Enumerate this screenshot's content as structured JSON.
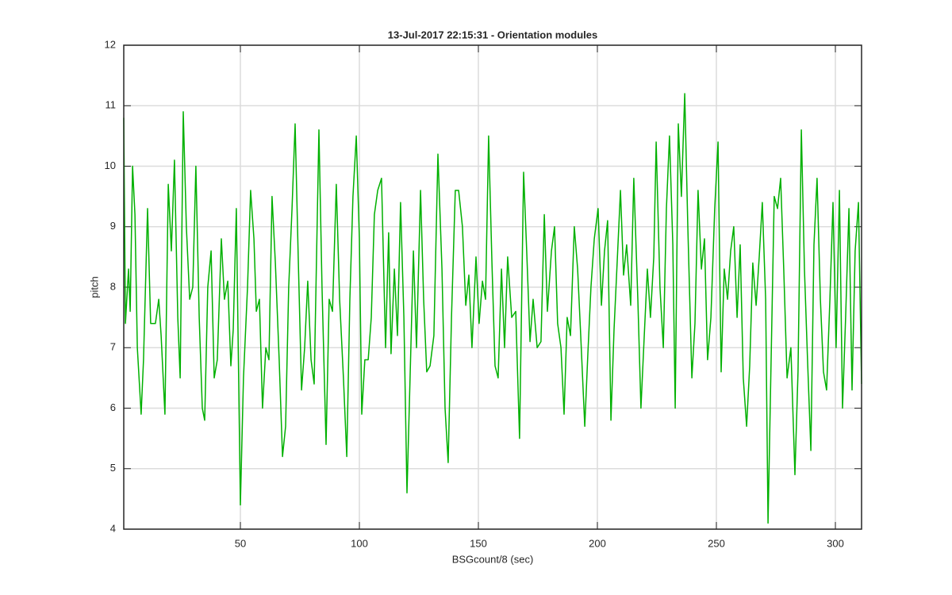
{
  "chart_data": {
    "type": "line",
    "title": "13-Jul-2017 22:15:31 - Orientation modules",
    "x_label": "BSGcount/8 (sec)",
    "y_label": "pitch",
    "xlim": [
      1,
      311
    ],
    "ylim": [
      4,
      12
    ],
    "xticks": [
      50,
      100,
      150,
      200,
      250,
      300
    ],
    "yticks": [
      4,
      5,
      6,
      7,
      8,
      9,
      10,
      11,
      12
    ],
    "grid": true,
    "x": [
      1,
      1.7,
      3,
      3.7,
      4.7,
      5.7,
      6.7,
      8.3,
      9.3,
      11,
      12.3,
      14.3,
      15.7,
      16.7,
      18.3,
      19.7,
      21,
      22.3,
      23.7,
      24.7,
      26,
      27.3,
      28.7,
      30,
      31.3,
      32.7,
      34,
      35,
      36.3,
      37.7,
      39,
      40.3,
      42,
      43.3,
      44.7,
      46,
      47,
      48.3,
      50,
      51.3,
      53,
      54.3,
      55.7,
      56.7,
      58,
      59.3,
      60.7,
      62,
      63.3,
      64.7,
      66.3,
      67.7,
      69,
      70.3,
      71.7,
      73,
      74.3,
      75.7,
      77,
      78.3,
      79.7,
      81,
      83,
      84.3,
      86,
      87.3,
      88.7,
      90.3,
      91.7,
      93.3,
      94.7,
      96,
      97.3,
      98.7,
      100,
      101,
      102.3,
      103.7,
      105,
      106.3,
      107.7,
      109.3,
      111,
      112.3,
      113.3,
      114.7,
      116,
      117.3,
      118.7,
      120,
      121.3,
      122.7,
      124,
      125.7,
      127,
      128.3,
      129.7,
      131.3,
      133,
      134.7,
      136,
      137.3,
      138.7,
      140.3,
      141.7,
      143.3,
      144.7,
      146,
      147.3,
      149,
      150.3,
      151.7,
      153,
      154.3,
      155.7,
      157,
      158.3,
      159.7,
      161,
      162.3,
      164,
      165.7,
      167.3,
      169,
      170.3,
      171.7,
      173,
      174.7,
      176.3,
      177.7,
      179,
      180.7,
      182,
      183.3,
      184.7,
      186,
      187.3,
      188.7,
      190.3,
      191.7,
      193,
      194.7,
      196,
      197.3,
      198.7,
      200.3,
      201.7,
      203,
      204.3,
      205.7,
      207,
      208.3,
      209.7,
      211,
      212.3,
      214,
      215.3,
      217,
      218.3,
      219.7,
      221,
      222.3,
      223.7,
      224.7,
      226.3,
      227.7,
      229,
      230.3,
      231.7,
      232.7,
      234,
      235.3,
      236.7,
      238,
      239.7,
      241,
      242.3,
      243.7,
      245,
      246.3,
      247.7,
      249.3,
      250.7,
      252,
      253.3,
      254.7,
      256,
      257.3,
      258.7,
      260,
      261.3,
      262.7,
      264,
      265.3,
      266.7,
      268,
      269.3,
      270.7,
      271.7,
      273,
      274.3,
      275.7,
      277,
      278.3,
      279.7,
      281.3,
      283,
      284.3,
      285.7,
      287,
      288.3,
      289.7,
      291,
      292.3,
      293.7,
      295,
      296.3,
      297.7,
      299,
      300.3,
      301.7,
      303,
      304.3,
      305.7,
      307,
      308.3,
      309.7,
      311
    ],
    "series": [
      {
        "color": "#00b000",
        "values": [
          10.8,
          7.4,
          8.3,
          7.6,
          10.0,
          9.2,
          7.0,
          5.9,
          6.8,
          9.3,
          7.4,
          7.4,
          7.8,
          7.2,
          5.9,
          9.7,
          8.6,
          10.1,
          7.5,
          6.5,
          10.9,
          9.0,
          7.8,
          8.0,
          10.0,
          7.5,
          6.0,
          5.8,
          8.0,
          8.6,
          6.5,
          6.8,
          8.8,
          7.8,
          8.1,
          6.7,
          7.3,
          9.3,
          4.4,
          6.5,
          8.0,
          9.6,
          8.8,
          7.6,
          7.8,
          6.0,
          7.0,
          6.8,
          9.5,
          8.4,
          6.8,
          5.2,
          5.7,
          8.0,
          9.3,
          10.7,
          8.5,
          6.3,
          7.0,
          8.1,
          6.8,
          6.4,
          10.6,
          8.0,
          5.4,
          7.8,
          7.6,
          9.7,
          7.8,
          6.5,
          5.2,
          7.8,
          9.5,
          10.5,
          8.8,
          5.9,
          6.8,
          6.8,
          7.5,
          9.2,
          9.6,
          9.8,
          7.0,
          8.9,
          6.9,
          8.3,
          7.2,
          9.4,
          7.5,
          4.6,
          6.5,
          8.6,
          7.0,
          9.6,
          7.8,
          6.6,
          6.7,
          7.2,
          10.2,
          8.3,
          6.0,
          5.1,
          7.5,
          9.6,
          9.6,
          9.0,
          7.7,
          8.2,
          7.0,
          8.5,
          7.4,
          8.1,
          7.8,
          10.5,
          8.4,
          6.7,
          6.5,
          8.3,
          7.0,
          8.5,
          7.5,
          7.6,
          5.5,
          9.9,
          8.6,
          7.1,
          7.8,
          7.0,
          7.1,
          9.2,
          7.6,
          8.6,
          9.0,
          7.4,
          7.0,
          5.9,
          7.5,
          7.2,
          9.0,
          8.3,
          7.2,
          5.7,
          6.9,
          8.0,
          8.8,
          9.3,
          7.7,
          8.6,
          9.1,
          5.8,
          7.3,
          8.4,
          9.6,
          8.2,
          8.7,
          7.7,
          9.8,
          7.8,
          6.0,
          7.2,
          8.3,
          7.5,
          8.5,
          10.4,
          8.0,
          7.0,
          9.3,
          10.5,
          8.7,
          6.0,
          10.7,
          9.5,
          11.2,
          9.0,
          6.5,
          7.4,
          9.6,
          8.3,
          8.8,
          6.8,
          7.5,
          9.3,
          10.4,
          6.6,
          8.3,
          7.8,
          8.6,
          9.0,
          7.5,
          8.7,
          6.5,
          5.7,
          6.7,
          8.4,
          7.7,
          8.5,
          9.4,
          7.8,
          4.1,
          6.8,
          9.5,
          9.3,
          9.8,
          8.3,
          6.5,
          7.0,
          4.9,
          6.6,
          10.6,
          8.3,
          6.8,
          5.3,
          8.7,
          9.8,
          7.8,
          6.6,
          6.3,
          7.8,
          9.4,
          7.0,
          9.6,
          6.0,
          7.5,
          9.3,
          6.3,
          8.6,
          9.4,
          6.4
        ]
      }
    ]
  }
}
